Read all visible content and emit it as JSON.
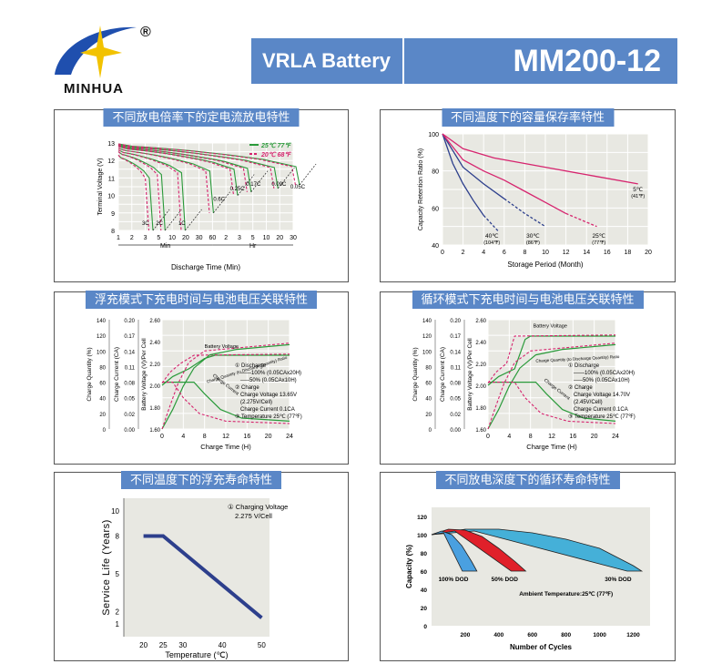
{
  "header": {
    "brand": "MINHUA",
    "registered": "®",
    "product": "VRLA Battery",
    "model": "MM200-12",
    "accent": "#5a87c7"
  },
  "chart_data": [
    {
      "id": "discharge",
      "type": "line",
      "title": "不同放电倍率下的定电流放电特性",
      "xlabel": "Discharge Time (Min)",
      "ylabel": "Terminal Voltage (V)",
      "ylim": [
        8,
        13
      ],
      "x_ticks": [
        "1",
        "2",
        "3",
        "5",
        "10",
        "20",
        "30",
        "60",
        "2",
        "3",
        "5",
        "10",
        "20",
        "30"
      ],
      "x_groups": [
        "Min",
        "Hr"
      ],
      "y_ticks": [
        "13",
        "12",
        "11",
        "10",
        "9",
        "8"
      ],
      "legend": [
        "25℃ 77℉",
        "20℃ 68℉"
      ],
      "legend_colors": [
        "#2a9a3a",
        "#d6246e"
      ],
      "rate_labels": [
        "3C",
        "2C",
        "1C",
        "0.6C",
        "0.25C",
        "0.17C",
        "0.09C",
        "0.05C"
      ],
      "curves": [
        {
          "end_idx": 2.3,
          "v": 12.2,
          "cut": 8.0,
          "label_idx": 0
        },
        {
          "end_idx": 3.2,
          "v": 12.4,
          "cut": 8.0,
          "label_idx": 1
        },
        {
          "end_idx": 4.7,
          "v": 12.5,
          "cut": 8.0,
          "label_idx": 2
        },
        {
          "end_idx": 6.8,
          "v": 12.6,
          "cut": 9.0,
          "label_idx": 3
        },
        {
          "end_idx": 8.6,
          "v": 12.7,
          "cut": 10.0,
          "label_idx": 4
        },
        {
          "end_idx": 9.6,
          "v": 12.75,
          "cut": 10.2,
          "label_idx": 5
        },
        {
          "end_idx": 11.6,
          "v": 12.8,
          "cut": 10.4,
          "label_idx": 6
        },
        {
          "end_idx": 13.2,
          "v": 12.85,
          "cut": 10.6,
          "label_idx": 7
        }
      ]
    },
    {
      "id": "retention",
      "type": "line",
      "title": "不同温度下的容量保存率特性",
      "xlabel": "Storage Period (Month)",
      "ylabel": "Capacity Retention Ratio (%)",
      "xlim": [
        0,
        20
      ],
      "ylim": [
        40,
        100
      ],
      "x_ticks": [
        0,
        2,
        4,
        6,
        8,
        10,
        12,
        14,
        16,
        18,
        20
      ],
      "y_ticks": [
        40,
        60,
        80,
        100
      ],
      "series": [
        {
          "name": "40℃ (104℉)",
          "color": "#2d3f8c",
          "x": [
            0,
            1,
            2,
            3,
            4,
            5,
            5.5
          ],
          "y": [
            100,
            84,
            73,
            64,
            56,
            50,
            47
          ],
          "dash_from": 4
        },
        {
          "name": "30℃ (86℉)",
          "color": "#2d3f8c",
          "x": [
            0,
            2,
            4,
            6,
            8,
            10
          ],
          "y": [
            100,
            82,
            73,
            65,
            57,
            50
          ],
          "dash_from": 6
        },
        {
          "name": "25℃ (77℉)",
          "color": "#d6246e",
          "x": [
            0,
            2,
            4,
            6,
            8,
            10,
            12,
            15
          ],
          "y": [
            100,
            86,
            80,
            75,
            69,
            63,
            57,
            50
          ],
          "dash_from": 12
        },
        {
          "name": "5℃ (41℉)",
          "color": "#d6246e",
          "x": [
            0,
            2,
            5,
            10,
            15,
            19
          ],
          "y": [
            100,
            92,
            87,
            82,
            77,
            73
          ]
        }
      ]
    },
    {
      "id": "float_charge",
      "type": "line",
      "title": "浮充模式下充电时间与电池电压关联特性",
      "xlabel": "Charge Time (H)",
      "ylabels": [
        "Charge Quantity (%)",
        "Charge Current (CA)",
        "Battery Voltage (V)/Per Cell"
      ],
      "x_ticks": [
        0,
        4,
        8,
        12,
        16,
        20,
        24
      ],
      "y_ticks_quantity": [
        0,
        20,
        40,
        60,
        80,
        100,
        120,
        140
      ],
      "y_ticks_current": [
        0,
        0.02,
        0.05,
        0.08,
        0.11,
        0.14,
        0.17,
        0.2
      ],
      "y_ticks_voltage": [
        "2.60",
        "2.40",
        "2.20",
        "2.00",
        "1.80",
        "1.60"
      ],
      "annotations": [
        "Battery Voltage",
        "Charge Quantity (to Discharge Quantity) Ratio",
        "Charge Current"
      ],
      "notes": [
        "① Discharge",
        "——100% (0.05CAx20H)",
        "-----50% (0.05CAx10H)",
        "② Charge",
        "Charge Voltage 13.65V",
        "(2.275V/Cell)",
        "Charge Current 0.1CA",
        "③ Temperature 25℃ (77℉)"
      ]
    },
    {
      "id": "cycle_charge",
      "type": "line",
      "title": "循环模式下充电时间与电池电压关联特性",
      "xlabel": "Charge Time (H)",
      "ylabels": [
        "Charge Quantity (%)",
        "Charge Current (CA)",
        "Battery Voltage (V)/Per Cell"
      ],
      "x_ticks": [
        0,
        4,
        8,
        12,
        16,
        20,
        24
      ],
      "y_ticks_quantity": [
        0,
        20,
        40,
        60,
        80,
        100,
        120,
        140
      ],
      "y_ticks_current": [
        0,
        0.02,
        0.05,
        0.08,
        0.11,
        0.14,
        0.17,
        0.2
      ],
      "y_ticks_voltage": [
        "2.60",
        "2.40",
        "2.20",
        "2.00",
        "1.80",
        "1.60"
      ],
      "annotations": [
        "Battery Voltage",
        "Charge Quantity (to Discharge Quantity) Ratio",
        "Charge Current"
      ],
      "notes": [
        "① Discharge",
        "——100% (0.05CAx20H)",
        "-----50% (0.05CAx10H)",
        "② Charge",
        "Charge Voltage 14.70V",
        "(2.45V/Cell)",
        "Charge Current 0.1CA",
        "③ Temperature 25℃ (77℉)"
      ]
    },
    {
      "id": "float_life",
      "type": "line",
      "title": "不同温度下的浮充寿命特性",
      "xlabel": "Temperature (℃)",
      "ylabel": "Service Life (Years)",
      "x_ticks": [
        20,
        25,
        30,
        40,
        50
      ],
      "y_ticks": [
        1,
        2,
        5,
        8,
        10
      ],
      "series": [
        {
          "name": "",
          "color": "#2d3f8c",
          "x": [
            20,
            25,
            50
          ],
          "y": [
            8,
            8,
            1.5
          ]
        }
      ],
      "notes": [
        "① Charging Voltage",
        "2.275 V/Cell"
      ]
    },
    {
      "id": "cycle_life",
      "type": "area",
      "title": "不同放电深度下的循环寿命特性",
      "xlabel": "Number of Cycles",
      "ylabel": "Capacity (%)",
      "xlim": [
        0,
        1300
      ],
      "ylim": [
        0,
        130
      ],
      "x_ticks": [
        200,
        400,
        600,
        800,
        1000,
        1200
      ],
      "y_ticks": [
        0,
        20,
        40,
        60,
        80,
        100,
        120
      ],
      "series": [
        {
          "name": "100% DOD",
          "color": "#4aa0e0",
          "x": [
            0,
            60,
            120,
            180,
            240,
            270
          ],
          "y": [
            100,
            104,
            100,
            88,
            70,
            60
          ]
        },
        {
          "name": "50% DOD",
          "color": "#e0202a",
          "x": [
            0,
            100,
            200,
            300,
            400,
            500,
            560
          ],
          "y": [
            100,
            106,
            105,
            98,
            85,
            70,
            60
          ]
        },
        {
          "name": "30% DOD",
          "color": "#45b0d8",
          "x": [
            0,
            200,
            400,
            600,
            800,
            1000,
            1200,
            1250
          ],
          "y": [
            100,
            106,
            106,
            102,
            95,
            85,
            66,
            60
          ]
        }
      ],
      "annotation": "Ambient Temperature:25℃ (77℉)"
    }
  ]
}
